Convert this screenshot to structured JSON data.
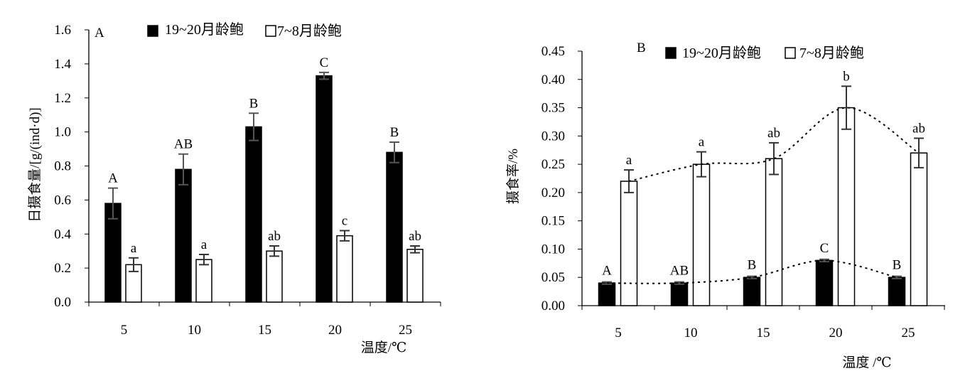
{
  "colors": {
    "dark_bar": "#000000",
    "light_bar": "#ffffff",
    "axis": "#000000",
    "error_bar": "#333333"
  },
  "chart_data": [
    {
      "type": "bar",
      "panel_label": "A",
      "categories": [
        "5",
        "10",
        "15",
        "20",
        "25"
      ],
      "xlabel": "温度/℃",
      "ylabel": "日摄食量/[g/(ind·d)]",
      "ylim": [
        0,
        1.6
      ],
      "yticks": [
        "0.0",
        "0.2",
        "0.4",
        "0.6",
        "0.8",
        "1.0",
        "1.2",
        "1.4",
        "1.6"
      ],
      "grid": false,
      "legend_position": "top",
      "series": [
        {
          "name": "19~20月龄鲍",
          "fill": "dark",
          "values": [
            0.58,
            0.78,
            1.03,
            1.33,
            0.88
          ],
          "errors": [
            0.09,
            0.09,
            0.08,
            0.02,
            0.06
          ],
          "letters": [
            "A",
            "AB",
            "B",
            "C",
            "B"
          ]
        },
        {
          "name": "7~8月龄鲍",
          "fill": "open",
          "values": [
            0.22,
            0.25,
            0.3,
            0.39,
            0.31
          ],
          "errors": [
            0.04,
            0.03,
            0.03,
            0.03,
            0.02
          ],
          "letters": [
            "a",
            "a",
            "ab",
            "c",
            "ab"
          ]
        }
      ]
    },
    {
      "type": "bar",
      "panel_label": "B",
      "categories": [
        "5",
        "10",
        "15",
        "20",
        "25"
      ],
      "xlabel": "温度 /℃",
      "ylabel": "摄食率/%",
      "ylim": [
        0,
        0.45
      ],
      "yticks": [
        "0.00",
        "0.05",
        "0.10",
        "0.15",
        "0.20",
        "0.25",
        "0.30",
        "0.35",
        "0.40",
        "0.45"
      ],
      "grid": false,
      "legend_position": "top",
      "trendlines": "dotted",
      "series": [
        {
          "name": "19~20月龄鲍",
          "fill": "dark",
          "values": [
            0.04,
            0.04,
            0.05,
            0.08,
            0.05
          ],
          "errors": [
            0.002,
            0.002,
            0.002,
            0.002,
            0.002
          ],
          "letters": [
            "A",
            "AB",
            "B",
            "C",
            "B"
          ]
        },
        {
          "name": "7~8月龄鲍",
          "fill": "open",
          "values": [
            0.22,
            0.25,
            0.26,
            0.35,
            0.27
          ],
          "errors": [
            0.02,
            0.022,
            0.028,
            0.038,
            0.026
          ],
          "letters": [
            "a",
            "a",
            "ab",
            "b",
            "ab"
          ]
        }
      ]
    }
  ]
}
